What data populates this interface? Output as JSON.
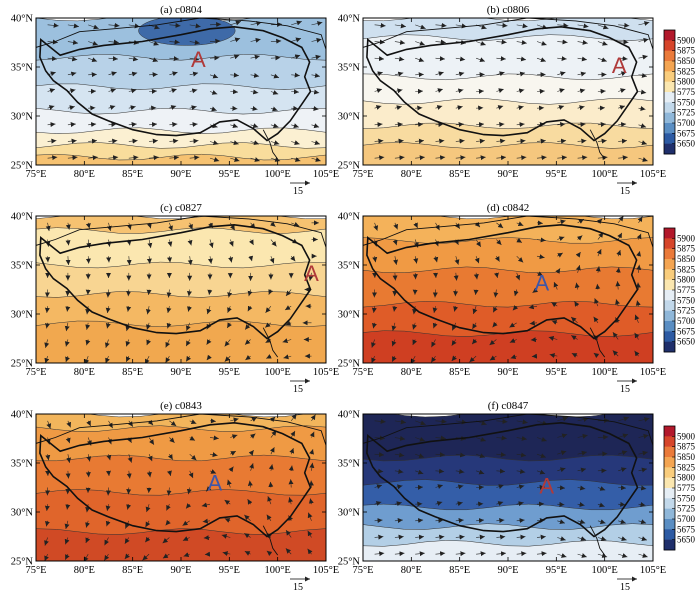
{
  "figure": {
    "x_ticks": [
      "75°E",
      "80°E",
      "85°E",
      "90°E",
      "95°E",
      "100°E",
      "105°E"
    ],
    "y_ticks": [
      "40°N",
      "35°N",
      "30°N",
      "25°N"
    ],
    "vector_reference": "15",
    "colorbar_levels": [
      "5900",
      "5875",
      "5850",
      "5825",
      "5800",
      "5775",
      "5750",
      "5725",
      "5700",
      "5675",
      "5650"
    ],
    "colorbar_colors": [
      "#b2182b",
      "#d6452a",
      "#ea7a3a",
      "#f4a552",
      "#f9cd7d",
      "#fbe7b0",
      "#e6eef5",
      "#c2d8ea",
      "#8fb7d9",
      "#5a8ec3",
      "#2c5aa3",
      "#1f2f6b"
    ],
    "panels": [
      {
        "label": "(a) c0804",
        "marker": "A",
        "marker_color": "#b03a3a",
        "marker_lon": 91.8,
        "marker_lat": 35.8,
        "colorbar": false,
        "fill_bands": [
          [
            "#9cc0de",
            40,
            36
          ],
          [
            "#b8d2e8",
            36,
            33
          ],
          [
            "#d5e4f1",
            33,
            30.5
          ],
          [
            "#eef2f6",
            30.5,
            28.5
          ],
          [
            "#fbf0d2",
            28.5,
            27
          ],
          [
            "#f9dd9c",
            27,
            25.8
          ],
          [
            "#f6c271",
            25.8,
            25
          ]
        ],
        "dark_region": {
          "color": "#3e6aa8",
          "lon": [
            80,
            95
          ],
          "lat": [
            37,
            40
          ]
        }
      },
      {
        "label": "(b) c0806",
        "marker": "A",
        "marker_color": "#b03a3a",
        "marker_lon": 101.5,
        "marker_lat": 35.2,
        "colorbar": true,
        "fill_bands": [
          [
            "#cfe0ef",
            40,
            38
          ],
          [
            "#edf2f6",
            38,
            34
          ],
          [
            "#f8f6ef",
            34,
            31.5
          ],
          [
            "#fbeccb",
            31.5,
            29
          ],
          [
            "#f8dba0",
            29,
            27
          ],
          [
            "#f5c77e",
            27,
            25
          ]
        ]
      },
      {
        "label": "(c) c0827",
        "marker": "A",
        "marker_color": "#b03a3a",
        "marker_lon": 103.5,
        "marker_lat": 34.2,
        "colorbar": false,
        "fill_bands": [
          [
            "#f6c271",
            40,
            38.5
          ],
          [
            "#fbe7b0",
            38.5,
            35
          ],
          [
            "#f8d592",
            35,
            32
          ],
          [
            "#f4b863",
            32,
            29
          ],
          [
            "#f1a84f",
            29,
            25
          ]
        ]
      },
      {
        "label": "(d) c0842",
        "marker": "A",
        "marker_color": "#3e56a8",
        "marker_lon": 93.5,
        "marker_lat": 33.2,
        "colorbar": true,
        "fill_bands": [
          [
            "#f4b25a",
            40,
            37.5
          ],
          [
            "#f09a44",
            37.5,
            34.5
          ],
          [
            "#e87a32",
            34.5,
            31
          ],
          [
            "#df5c28",
            31,
            28
          ],
          [
            "#cf3f22",
            28,
            25
          ]
        ]
      },
      {
        "label": "(e) c0843",
        "marker": "A",
        "marker_color": "#3e56a8",
        "marker_lon": 93.5,
        "marker_lat": 33,
        "colorbar": false,
        "fill_bands": [
          [
            "#f2b55c",
            40,
            38.5
          ],
          [
            "#ef9a44",
            38.5,
            35.5
          ],
          [
            "#e87a33",
            35.5,
            32
          ],
          [
            "#e0652b",
            32,
            28
          ],
          [
            "#d04a25",
            28,
            25
          ]
        ]
      },
      {
        "label": "(f) c0847",
        "marker": "A",
        "marker_color": "#b03a3a",
        "marker_lon": 94,
        "marker_lat": 32.7,
        "colorbar": true,
        "fill_bands": [
          [
            "#1e2656",
            40,
            35.5
          ],
          [
            "#26387a",
            35.5,
            33
          ],
          [
            "#345ea8",
            33,
            30.5
          ],
          [
            "#6f9dcf",
            30.5,
            28.5
          ],
          [
            "#b3cfe6",
            28.5,
            26.8
          ],
          [
            "#e7eef5",
            26.8,
            25
          ]
        ]
      }
    ]
  }
}
